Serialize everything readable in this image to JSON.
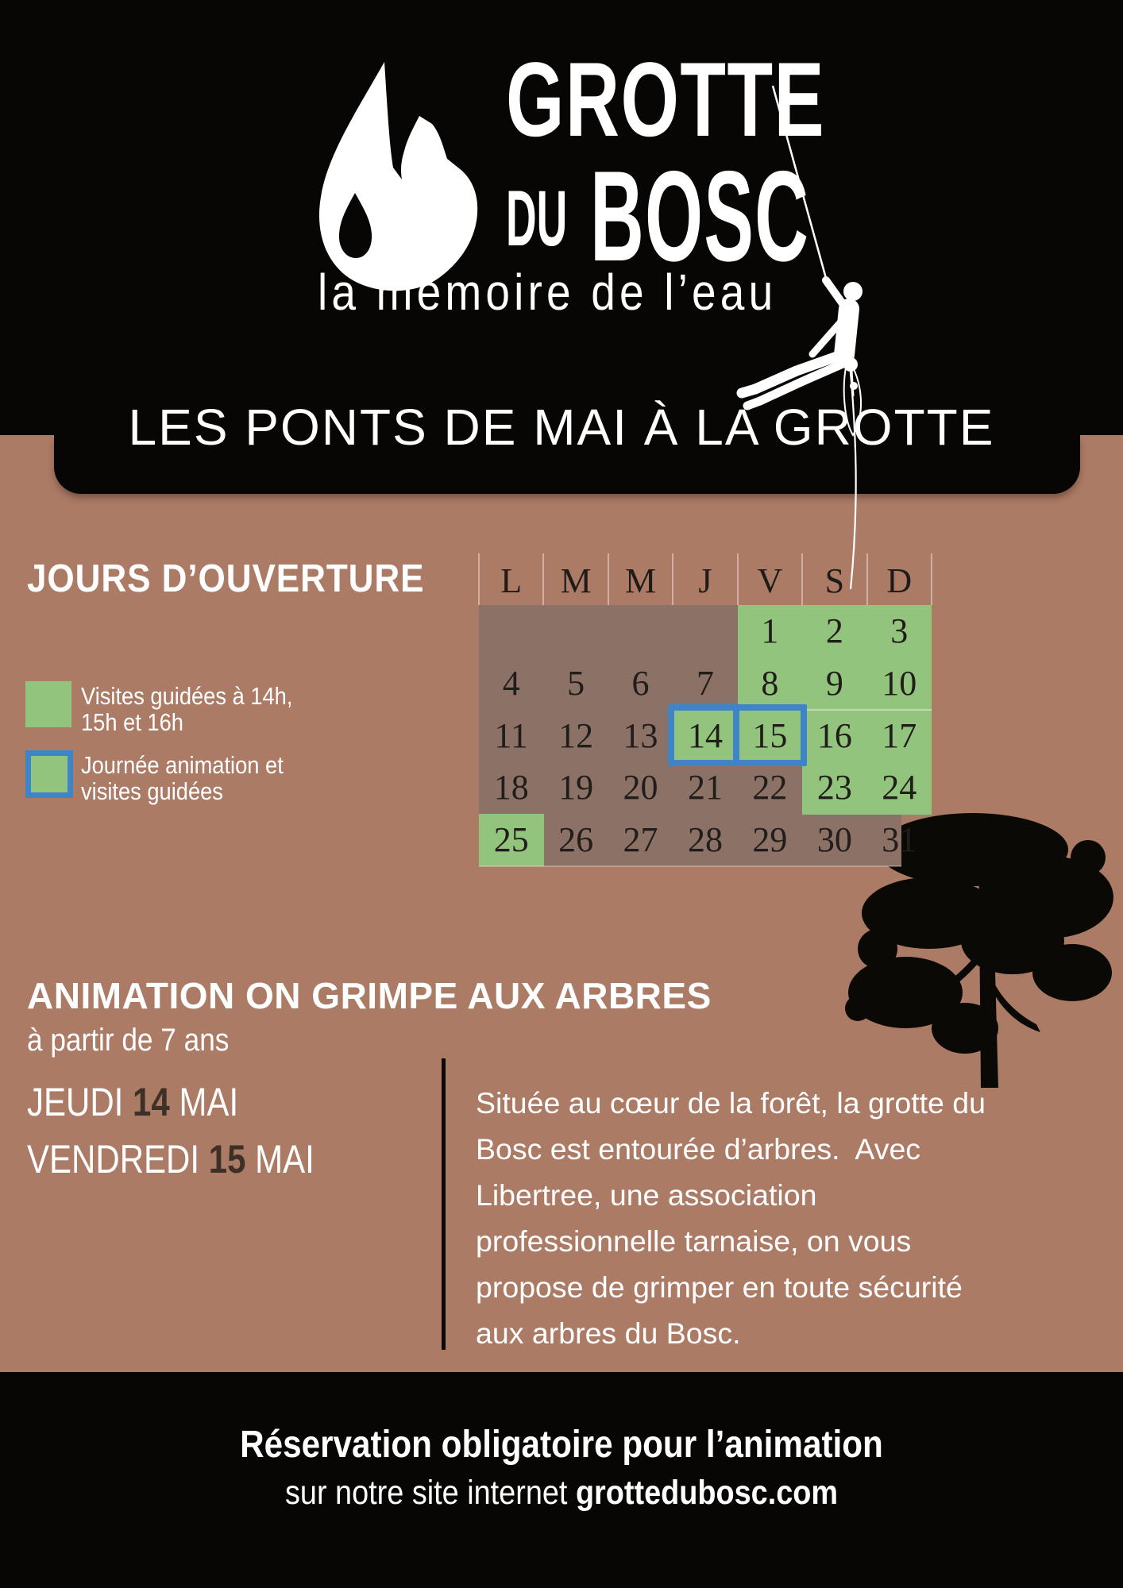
{
  "palette": {
    "background_terracotta": "#ac7b66",
    "black": "#070605",
    "calendar_body_brown": "#8c7166",
    "green": "#93c47d",
    "blue_border": "#3d85c6",
    "white": "#ffffff",
    "dark_number": "#3d3027"
  },
  "logo": {
    "line1": "GROTTE",
    "line2_small": "DU",
    "line2": "BOSC",
    "subtitle": "la mémoire de l’eau"
  },
  "banner": {
    "title": "LES PONTS DE MAI À LA GROTTE"
  },
  "opening": {
    "heading": "JOURS D’OUVERTURE",
    "legend": [
      {
        "style": "green",
        "label_line1": "Visites guidées à 14h,",
        "label_line2": "15h et 16h"
      },
      {
        "style": "green-blue-border",
        "label_line1": "Journée animation et",
        "label_line2": "visites guidées"
      }
    ],
    "calendar": {
      "day_headers": [
        "L",
        "M",
        "M",
        "J",
        "V",
        "S",
        "D"
      ],
      "weeks": [
        [
          "",
          "",
          "",
          "",
          "1",
          "2",
          "3"
        ],
        [
          "4",
          "5",
          "6",
          "7",
          "8",
          "9",
          "10"
        ],
        [
          "11",
          "12",
          "13",
          "14",
          "15",
          "16",
          "17"
        ],
        [
          "18",
          "19",
          "20",
          "21",
          "22",
          "23",
          "24"
        ],
        [
          "25",
          "26",
          "27",
          "28",
          "29",
          "30",
          "31"
        ]
      ],
      "green_days": [
        1,
        2,
        3,
        8,
        9,
        10,
        14,
        15,
        16,
        17,
        23,
        24,
        25
      ],
      "animation_days": [
        14,
        15
      ]
    }
  },
  "animation": {
    "heading": "ANIMATION ON GRIMPE AUX ARBRES",
    "subheading": "à partir de 7 ans",
    "date1": {
      "day": "JEUDI",
      "num": "14",
      "month": "MAI"
    },
    "date2": {
      "day": "VENDREDI",
      "num": "15",
      "month": "MAI"
    },
    "description_lines": [
      "Située au cœur de la forêt, la grotte du",
      "Bosc est entourée d’arbres.  Avec",
      "Libertree, une association",
      "professionnelle tarnaise, on vous",
      "propose de grimper en toute sécurité",
      "aux arbres du Bosc."
    ]
  },
  "footer": {
    "line1": "Réservation obligatoire pour l’animation",
    "line2_prefix": "sur notre site internet ",
    "line2_bold": "grottedubosc.com"
  }
}
